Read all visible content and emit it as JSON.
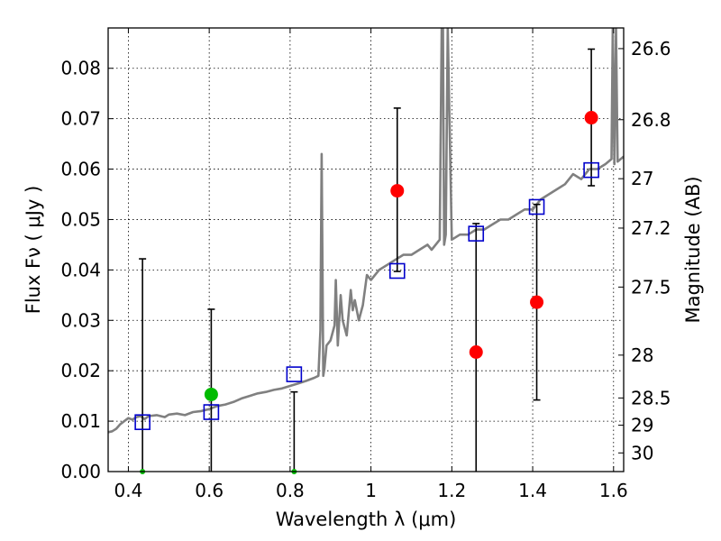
{
  "chart_data": {
    "type": "scatter",
    "title": "",
    "xlabel": "Wavelength  λ (μm)",
    "ylabel": "Flux  Fν  ( μJy )",
    "ylabel_right": "Magnitude (AB)",
    "xlim": [
      0.35,
      1.625
    ],
    "ylim": [
      0.0,
      0.088
    ],
    "grid": true,
    "x_ticks": [
      0.4,
      0.6,
      0.8,
      1.0,
      1.2,
      1.4,
      1.6
    ],
    "x_tick_labels": [
      "0.4",
      "0.6",
      "0.8",
      "1",
      "1.2",
      "1.4",
      "1.6"
    ],
    "y_ticks": [
      0.0,
      0.01,
      0.02,
      0.03,
      0.04,
      0.05,
      0.06,
      0.07,
      0.08
    ],
    "y_tick_labels": [
      "0.00",
      "0.01",
      "0.02",
      "0.03",
      "0.04",
      "0.05",
      "0.06",
      "0.07",
      "0.08"
    ],
    "magnitude_ticks": [
      {
        "label": "26.6",
        "flux": 0.0839
      },
      {
        "label": "26.8",
        "flux": 0.0698
      },
      {
        "label": "27",
        "flux": 0.0581
      },
      {
        "label": "27.2",
        "flux": 0.0483
      },
      {
        "label": "27.5",
        "flux": 0.0366
      },
      {
        "label": "28",
        "flux": 0.0231
      },
      {
        "label": "28.5",
        "flux": 0.0146
      },
      {
        "label": "29",
        "flux": 0.0092
      },
      {
        "label": "30",
        "flux": 0.0037
      }
    ],
    "series": [
      {
        "role": "model-spectrum",
        "color": "#808080",
        "x": [
          0.35,
          0.36,
          0.37,
          0.38,
          0.39,
          0.4,
          0.41,
          0.42,
          0.43,
          0.44,
          0.45,
          0.47,
          0.49,
          0.5,
          0.52,
          0.54,
          0.56,
          0.58,
          0.6,
          0.62,
          0.64,
          0.66,
          0.68,
          0.7,
          0.72,
          0.74,
          0.76,
          0.78,
          0.8,
          0.82,
          0.84,
          0.86,
          0.87,
          0.875,
          0.878,
          0.882,
          0.885,
          0.89,
          0.9,
          0.91,
          0.913,
          0.918,
          0.925,
          0.93,
          0.94,
          0.95,
          0.955,
          0.96,
          0.97,
          0.98,
          0.99,
          1.0,
          1.02,
          1.04,
          1.06,
          1.08,
          1.1,
          1.12,
          1.14,
          1.15,
          1.16,
          1.17,
          1.175,
          1.178,
          1.181,
          1.185,
          1.19,
          1.2,
          1.22,
          1.24,
          1.26,
          1.28,
          1.3,
          1.32,
          1.34,
          1.36,
          1.38,
          1.4,
          1.42,
          1.44,
          1.46,
          1.48,
          1.5,
          1.52,
          1.54,
          1.56,
          1.58,
          1.595,
          1.598,
          1.602,
          1.606,
          1.61,
          1.625
        ],
        "y": [
          0.0078,
          0.008,
          0.0085,
          0.0094,
          0.01,
          0.0106,
          0.0103,
          0.0108,
          0.011,
          0.0104,
          0.011,
          0.0112,
          0.0108,
          0.0113,
          0.0115,
          0.0112,
          0.0118,
          0.012,
          0.0124,
          0.013,
          0.0133,
          0.0138,
          0.0145,
          0.015,
          0.0155,
          0.0158,
          0.0162,
          0.0165,
          0.017,
          0.0175,
          0.018,
          0.0186,
          0.019,
          0.028,
          0.063,
          0.019,
          0.0205,
          0.025,
          0.026,
          0.029,
          0.038,
          0.025,
          0.035,
          0.03,
          0.027,
          0.036,
          0.032,
          0.034,
          0.03,
          0.033,
          0.039,
          0.038,
          0.04,
          0.041,
          0.042,
          0.043,
          0.043,
          0.044,
          0.045,
          0.044,
          0.045,
          0.046,
          0.088,
          0.088,
          0.045,
          0.047,
          0.088,
          0.046,
          0.047,
          0.047,
          0.048,
          0.048,
          0.049,
          0.05,
          0.05,
          0.051,
          0.052,
          0.052,
          0.054,
          0.055,
          0.056,
          0.057,
          0.059,
          0.058,
          0.06,
          0.06,
          0.061,
          0.062,
          0.088,
          0.061,
          0.088,
          0.0615,
          0.0625
        ]
      },
      {
        "role": "model-band-flux",
        "marker": "open-square",
        "color": "#0000cc",
        "x": [
          0.435,
          0.605,
          0.81,
          1.065,
          1.26,
          1.41,
          1.545
        ],
        "y": [
          0.0098,
          0.0118,
          0.0193,
          0.0398,
          0.0472,
          0.0525,
          0.0598
        ]
      },
      {
        "role": "detections",
        "marker": "filled-circle",
        "color": "#ff0000",
        "x": [
          1.065,
          1.26,
          1.41,
          1.545
        ],
        "y": [
          0.0557,
          0.0237,
          0.0336,
          0.0702
        ],
        "err_low": [
          0.0397,
          0.0,
          0.0142,
          0.0567
        ],
        "err_high": [
          0.0721,
          0.0492,
          0.053,
          0.0838
        ]
      },
      {
        "role": "low-signal",
        "marker": "filled-circle",
        "color": "#00bb00",
        "x": [
          0.605
        ],
        "y": [
          0.0153
        ],
        "err_low": [
          0.0
        ],
        "err_high": [
          0.0322
        ]
      },
      {
        "role": "upper-limits",
        "marker": "error-bar-only",
        "color": "#00bb00",
        "x": [
          0.435,
          0.81
        ],
        "y": [
          0.0,
          0.0
        ],
        "err_low": [
          0.0,
          0.0
        ],
        "err_high": [
          0.0422,
          0.0158
        ]
      }
    ]
  }
}
